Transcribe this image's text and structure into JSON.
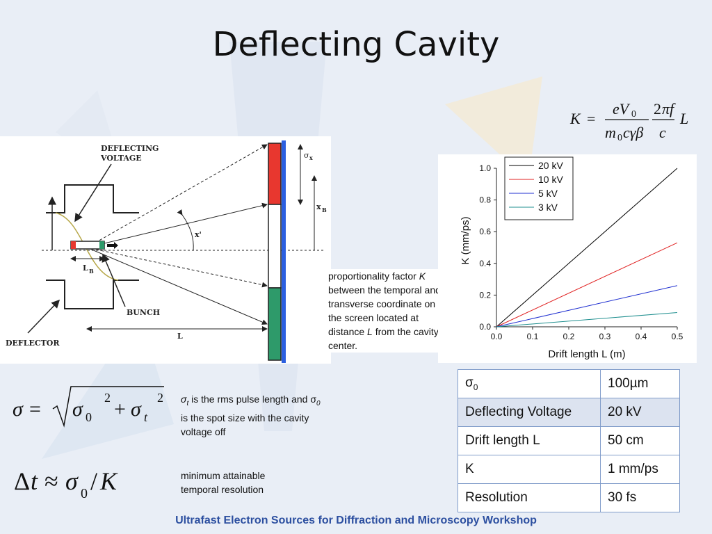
{
  "slide": {
    "title": "Deflecting Cavity",
    "footer": "Ultrafast Electron Sources for Diffraction and Microscopy Workshop"
  },
  "colors": {
    "red": "#e8372f",
    "green": "#2e9a6a",
    "blue": "#2b5fe0",
    "accent_text": "#2c4fa0"
  },
  "diagram": {
    "label_deflecting_voltage_1": "DEFLECTING",
    "label_deflecting_voltage_2": "VOLTAGE",
    "label_bunch": "BUNCH",
    "label_deflector": "DEFLECTOR",
    "label_l": "L",
    "label_lb": "L",
    "label_lb_sub": "B",
    "label_xprime": "x'",
    "label_xb": "x",
    "label_xb_sub": "B",
    "label_sigma_x": "σ",
    "label_sigma_x_sub": "x"
  },
  "description": {
    "line1a": "proportionality factor ",
    "line1b": "K",
    "line2": "between the temporal and",
    "line3": "transverse coordinate on",
    "line4": "the screen located at",
    "line5a": "distance ",
    "line5b": "L",
    "line5c": " from the cavity",
    "line6": "center."
  },
  "notes": {
    "sigma_t_sym": "σ",
    "sigma_t_sub": "t",
    "sigma_text_a": " is the rms pulse length and σ",
    "sigma_0_sub": "0",
    "sigma_text_b": "is the spot size with the cavity",
    "sigma_text_c": "voltage off",
    "res_line1": "minimum attainable",
    "res_line2": "temporal resolution"
  },
  "table": [
    {
      "label": "σ",
      "label_sub": "0",
      "value": "100µm"
    },
    {
      "label": "Deflecting Voltage",
      "label_sub": "",
      "value": "20 kV"
    },
    {
      "label": "Drift length L",
      "label_sub": "",
      "value": "50 cm"
    },
    {
      "label": "K",
      "label_sub": "",
      "value": "1 mm/ps"
    },
    {
      "label": "Resolution",
      "label_sub": "",
      "value": "30 fs"
    }
  ],
  "chart_data": {
    "type": "line",
    "xlabel": "Drift length L (m)",
    "ylabel": "K (mm/ps)",
    "xlim": [
      0.0,
      0.5
    ],
    "ylim": [
      0.0,
      1.0
    ],
    "xticks": [
      "0.0",
      "0.1",
      "0.2",
      "0.3",
      "0.4",
      "0.5"
    ],
    "yticks": [
      "0.0",
      "0.2",
      "0.4",
      "0.6",
      "0.8",
      "1.0"
    ],
    "legend_position": "top-left",
    "series": [
      {
        "name": "20 kV",
        "color": "#000000",
        "x": [
          0.0,
          0.5
        ],
        "y": [
          0.0,
          1.0
        ]
      },
      {
        "name": "10 kV",
        "color": "#e02020",
        "x": [
          0.0,
          0.5
        ],
        "y": [
          0.0,
          0.53
        ]
      },
      {
        "name": "5 kV",
        "color": "#1f2fd0",
        "x": [
          0.0,
          0.5
        ],
        "y": [
          0.0,
          0.26
        ]
      },
      {
        "name": "3 kV",
        "color": "#1f8f8f",
        "x": [
          0.0,
          0.5
        ],
        "y": [
          0.0,
          0.09
        ]
      }
    ]
  }
}
